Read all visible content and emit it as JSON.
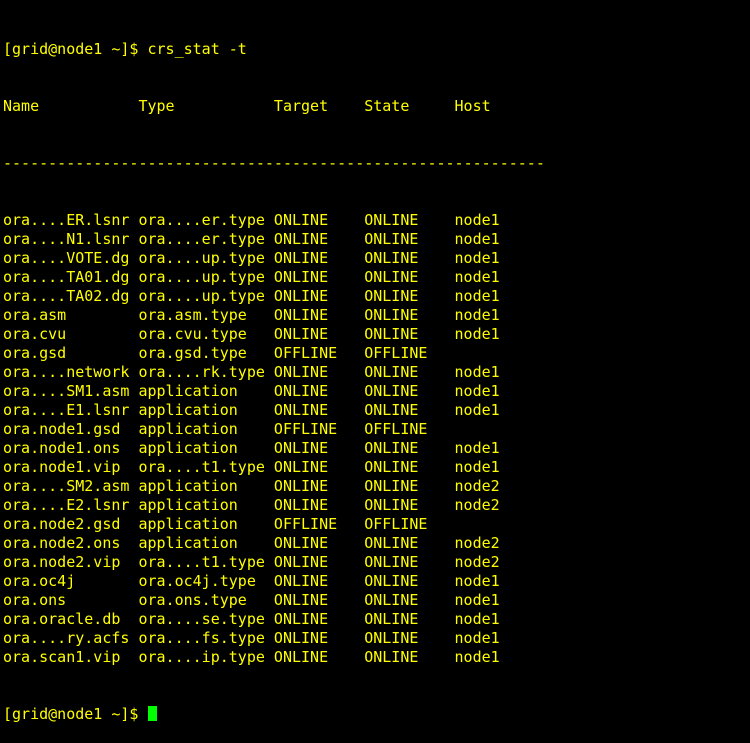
{
  "terminal": {
    "prompt": "[grid@node1 ~]$ ",
    "command": "crs_stat -t",
    "headers": [
      "Name",
      "Type",
      "Target",
      "State",
      "Host"
    ],
    "separator": "------------------------------------------------------------",
    "rows": [
      [
        "ora....ER.lsnr",
        "ora....er.type",
        "ONLINE",
        "ONLINE",
        "node1"
      ],
      [
        "ora....N1.lsnr",
        "ora....er.type",
        "ONLINE",
        "ONLINE",
        "node1"
      ],
      [
        "ora....VOTE.dg",
        "ora....up.type",
        "ONLINE",
        "ONLINE",
        "node1"
      ],
      [
        "ora....TA01.dg",
        "ora....up.type",
        "ONLINE",
        "ONLINE",
        "node1"
      ],
      [
        "ora....TA02.dg",
        "ora....up.type",
        "ONLINE",
        "ONLINE",
        "node1"
      ],
      [
        "ora.asm",
        "ora.asm.type",
        "ONLINE",
        "ONLINE",
        "node1"
      ],
      [
        "ora.cvu",
        "ora.cvu.type",
        "ONLINE",
        "ONLINE",
        "node1"
      ],
      [
        "ora.gsd",
        "ora.gsd.type",
        "OFFLINE",
        "OFFLINE",
        ""
      ],
      [
        "ora....network",
        "ora....rk.type",
        "ONLINE",
        "ONLINE",
        "node1"
      ],
      [
        "ora....SM1.asm",
        "application",
        "ONLINE",
        "ONLINE",
        "node1"
      ],
      [
        "ora....E1.lsnr",
        "application",
        "ONLINE",
        "ONLINE",
        "node1"
      ],
      [
        "ora.node1.gsd",
        "application",
        "OFFLINE",
        "OFFLINE",
        ""
      ],
      [
        "ora.node1.ons",
        "application",
        "ONLINE",
        "ONLINE",
        "node1"
      ],
      [
        "ora.node1.vip",
        "ora....t1.type",
        "ONLINE",
        "ONLINE",
        "node1"
      ],
      [
        "ora....SM2.asm",
        "application",
        "ONLINE",
        "ONLINE",
        "node2"
      ],
      [
        "ora....E2.lsnr",
        "application",
        "ONLINE",
        "ONLINE",
        "node2"
      ],
      [
        "ora.node2.gsd",
        "application",
        "OFFLINE",
        "OFFLINE",
        ""
      ],
      [
        "ora.node2.ons",
        "application",
        "ONLINE",
        "ONLINE",
        "node2"
      ],
      [
        "ora.node2.vip",
        "ora....t1.type",
        "ONLINE",
        "ONLINE",
        "node2"
      ],
      [
        "ora.oc4j",
        "ora.oc4j.type",
        "ONLINE",
        "ONLINE",
        "node1"
      ],
      [
        "ora.ons",
        "ora.ons.type",
        "ONLINE",
        "ONLINE",
        "node1"
      ],
      [
        "ora.oracle.db",
        "ora....se.type",
        "ONLINE",
        "ONLINE",
        "node1"
      ],
      [
        "ora....ry.acfs",
        "ora....fs.type",
        "ONLINE",
        "ONLINE",
        "node1"
      ],
      [
        "ora.scan1.vip",
        "ora....ip.type",
        "ONLINE",
        "ONLINE",
        "node1"
      ]
    ],
    "colors": {
      "text": "#ffff00",
      "cursor": "#00ff00",
      "background": "#000000"
    }
  }
}
